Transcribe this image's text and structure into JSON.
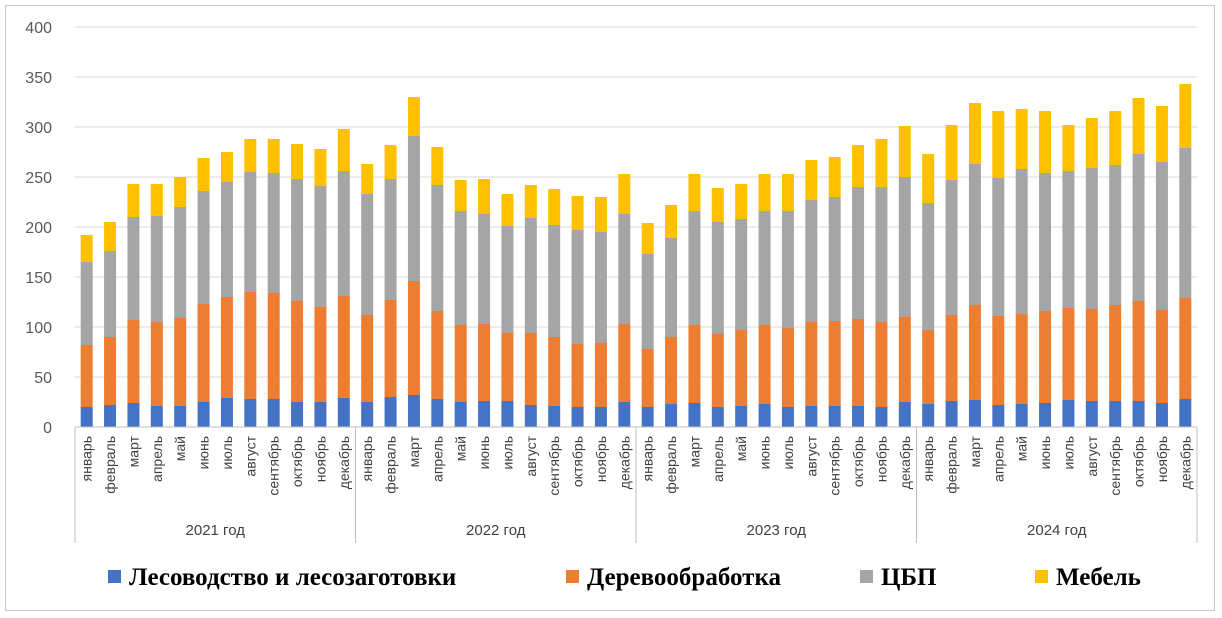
{
  "chart_data": {
    "type": "bar",
    "stacked": true,
    "title": "",
    "xlabel": "",
    "ylabel": "",
    "ylim": [
      0,
      400
    ],
    "yticks": [
      0,
      50,
      100,
      150,
      200,
      250,
      300,
      350,
      400
    ],
    "grid": "horizontal",
    "legend_position": "bottom",
    "groups": [
      {
        "label": "2021 год",
        "months": [
          "январь",
          "февраль",
          "март",
          "апрель",
          "май",
          "июнь",
          "июль",
          "август",
          "сентябрь",
          "октябрь",
          "ноябрь",
          "декабрь"
        ]
      },
      {
        "label": "2022 год",
        "months": [
          "январь",
          "февраль",
          "март",
          "апрель",
          "май",
          "июнь",
          "июль",
          "август",
          "сентябрь",
          "октябрь",
          "ноябрь",
          "декабрь"
        ]
      },
      {
        "label": "2023 год",
        "months": [
          "январь",
          "февраль",
          "март",
          "апрель",
          "май",
          "июнь",
          "июль",
          "август",
          "сентябрь",
          "октябрь",
          "ноябрь",
          "декабрь"
        ]
      },
      {
        "label": "2024 год",
        "months": [
          "январь",
          "февраль",
          "март",
          "апрель",
          "май",
          "июнь",
          "июль",
          "август",
          "сентябрь",
          "октябрь",
          "ноябрь",
          "декабрь"
        ]
      }
    ],
    "series": [
      {
        "name": "Лесоводство и лесозаготовки",
        "color": "#4472c4",
        "values": [
          20,
          22,
          24,
          21,
          21,
          25,
          29,
          28,
          28,
          25,
          25,
          29,
          25,
          30,
          32,
          28,
          25,
          26,
          26,
          22,
          21,
          20,
          20,
          25,
          20,
          23,
          24,
          20,
          21,
          23,
          20,
          21,
          21,
          21,
          20,
          25,
          23,
          26,
          27,
          22,
          23,
          24,
          27,
          26,
          26,
          26,
          24,
          28
        ]
      },
      {
        "name": "Деревообработка",
        "color": "#ed7d31",
        "values": [
          62,
          68,
          83,
          84,
          88,
          98,
          101,
          107,
          106,
          101,
          95,
          102,
          87,
          97,
          114,
          88,
          77,
          77,
          68,
          72,
          69,
          63,
          64,
          78,
          58,
          67,
          78,
          73,
          76,
          79,
          79,
          84,
          85,
          87,
          85,
          85,
          74,
          86,
          95,
          89,
          90,
          92,
          92,
          92,
          96,
          100,
          93,
          101
        ]
      },
      {
        "name": "ЦБП",
        "color": "#a5a5a5",
        "values": [
          83,
          86,
          103,
          106,
          111,
          113,
          115,
          120,
          120,
          122,
          121,
          125,
          121,
          121,
          145,
          126,
          114,
          110,
          107,
          115,
          112,
          114,
          111,
          110,
          95,
          99,
          114,
          112,
          111,
          114,
          117,
          122,
          124,
          132,
          135,
          140,
          127,
          135,
          141,
          138,
          145,
          138,
          137,
          141,
          140,
          147,
          148,
          150
        ]
      },
      {
        "name": "Мебель",
        "color": "#ffc000",
        "values": [
          27,
          29,
          33,
          32,
          30,
          33,
          30,
          33,
          34,
          35,
          37,
          42,
          30,
          34,
          39,
          38,
          31,
          35,
          32,
          33,
          36,
          34,
          35,
          40,
          31,
          33,
          37,
          34,
          35,
          37,
          37,
          40,
          40,
          42,
          48,
          51,
          49,
          55,
          61,
          67,
          60,
          62,
          46,
          50,
          54,
          56,
          56,
          64
        ]
      }
    ]
  }
}
